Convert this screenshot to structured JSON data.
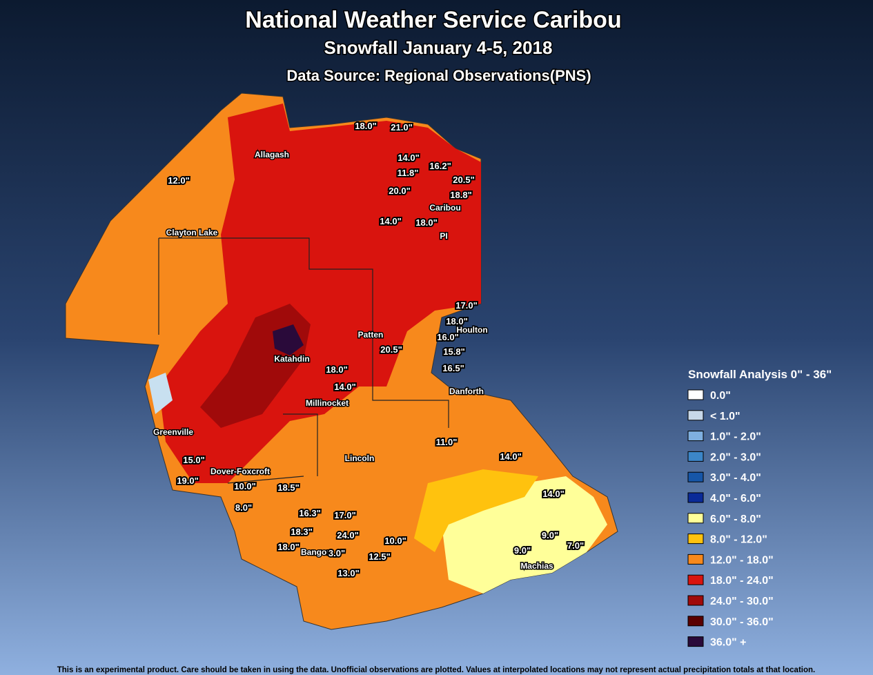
{
  "header": {
    "title": "National Weather Service Caribou",
    "subtitle": "Snowfall January 4-5, 2018",
    "source": "Data Source: Regional Observations(PNS)"
  },
  "towns": [
    "Allagash",
    "Caribou",
    "PI",
    "Clayton Lake",
    "Houlton",
    "Patten",
    "Katahdin",
    "Danforth",
    "Millinocket",
    "Greenville",
    "Lincoln",
    "Dover-Foxcroft",
    "Bangor",
    "Machias"
  ],
  "observations": [
    "18.0\"",
    "21.0\"",
    "14.0\"",
    "11.8\"",
    "16.2\"",
    "20.5\"",
    "20.0\"",
    "18.8\"",
    "14.0\"",
    "18.0\"",
    "17.0\"",
    "18.0\"",
    "16.0\"",
    "15.8\"",
    "16.5\"",
    "20.5\"",
    "18.0\"",
    "14.0\"",
    "12.0\"",
    "11.0\"",
    "14.0\"",
    "14.0\"",
    "15.0\"",
    "19.0\"",
    "10.0\"",
    "18.5\"",
    "8.0\"",
    "16.3\"",
    "17.0\"",
    "18.3\"",
    "24.0\"",
    "18.0\"",
    "3.0\"",
    "10.0\"",
    "9.0\"",
    "7.0\"",
    "9.0\"",
    "12.5\"",
    "13.0\""
  ],
  "legend": {
    "title": "Snowfall Analysis 0\" - 36\"",
    "items": [
      {
        "label": "0.0\"",
        "color": "#ffffff"
      },
      {
        "label": "< 1.0\"",
        "color": "#c8d8e8"
      },
      {
        "label": "1.0\" - 2.0\"",
        "color": "#7fb0e0"
      },
      {
        "label": "2.0\" - 3.0\"",
        "color": "#3c86c8"
      },
      {
        "label": "3.0\" - 4.0\"",
        "color": "#1656a8"
      },
      {
        "label": "4.0\" - 6.0\"",
        "color": "#0a2a98"
      },
      {
        "label": "6.0\" - 8.0\"",
        "color": "#ffff99"
      },
      {
        "label": "8.0\" - 12.0\"",
        "color": "#ffc20e"
      },
      {
        "label": "12.0\" - 18.0\"",
        "color": "#f7891c"
      },
      {
        "label": "18.0\" - 24.0\"",
        "color": "#d9140e"
      },
      {
        "label": "24.0\" - 30.0\"",
        "color": "#a00a0a"
      },
      {
        "label": "30.0\" - 36.0\"",
        "color": "#5a0000"
      },
      {
        "label": "36.0\" +",
        "color": "#2a0a3a"
      }
    ]
  },
  "footer": "This is an experimental product. Care should be taken in using the data. Unofficial observations are plotted. Values at interpolated locations may not represent actual precipitation totals at that location."
}
